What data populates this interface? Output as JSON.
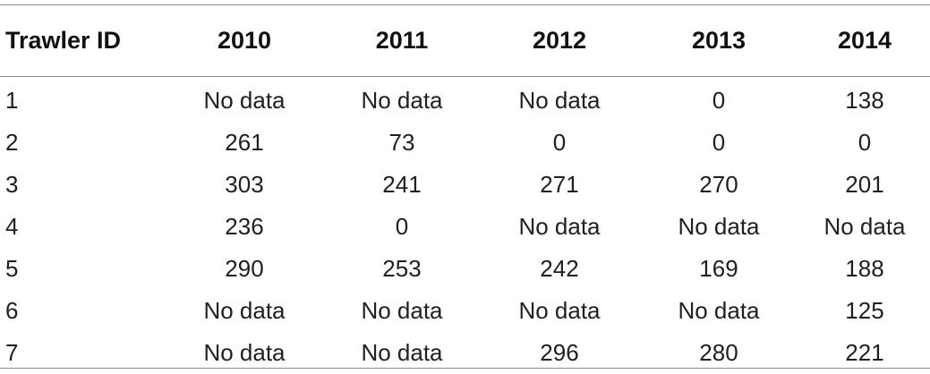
{
  "table": {
    "headers": [
      "Trawler ID",
      "2010",
      "2011",
      "2012",
      "2013",
      "2014"
    ],
    "rows": [
      [
        "1",
        "No data",
        "No data",
        "No data",
        "0",
        "138"
      ],
      [
        "2",
        "261",
        "73",
        "0",
        "0",
        "0"
      ],
      [
        "3",
        "303",
        "241",
        "271",
        "270",
        "201"
      ],
      [
        "4",
        "236",
        "0",
        "No data",
        "No data",
        "No data"
      ],
      [
        "5",
        "290",
        "253",
        "242",
        "169",
        "188"
      ],
      [
        "6",
        "No data",
        "No data",
        "No data",
        "No data",
        "125"
      ],
      [
        "7",
        "No data",
        "No data",
        "296",
        "280",
        "221"
      ]
    ]
  }
}
